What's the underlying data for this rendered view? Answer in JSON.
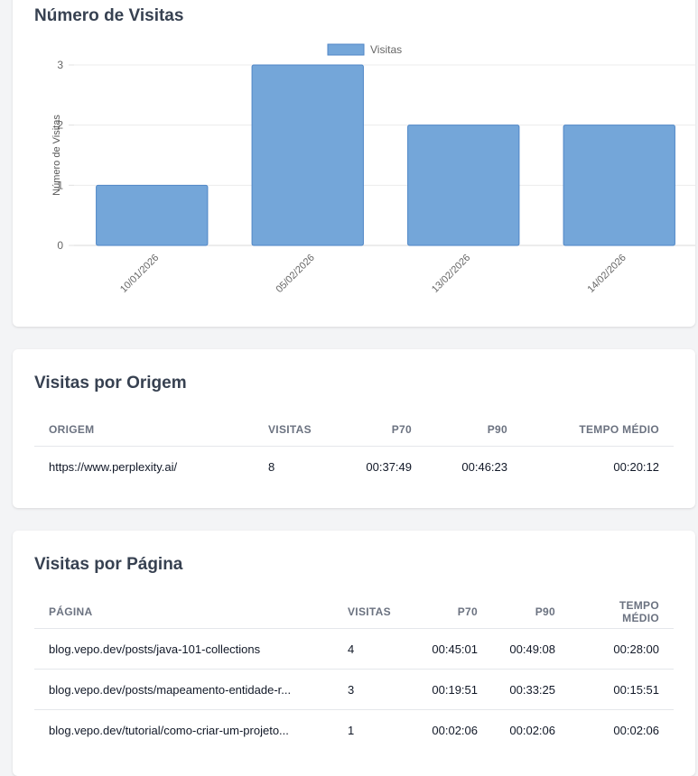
{
  "chart_section": {
    "title": "Número de Visitas"
  },
  "chart_data": {
    "type": "bar",
    "categories": [
      "10/01/2026",
      "05/02/2026",
      "13/02/2026",
      "14/02/2026"
    ],
    "series": [
      {
        "name": "Visitas",
        "values": [
          1,
          3,
          2,
          2
        ],
        "color": "#74a6d9"
      }
    ],
    "ylabel": "Número de Visitas",
    "yticks": [
      0,
      1,
      2,
      3
    ],
    "ylim": [
      0,
      3
    ],
    "legend": "top-center",
    "grid": true
  },
  "origem_section": {
    "title": "Visitas por Origem",
    "columns": [
      "Origem",
      "Visitas",
      "P70",
      "P90",
      "Tempo Médio"
    ],
    "rows": [
      {
        "origem": "https://www.perplexity.ai/",
        "visitas": "8",
        "p70": "00:37:49",
        "p90": "00:46:23",
        "tempo": "00:20:12"
      }
    ]
  },
  "pagina_section": {
    "title": "Visitas por Página",
    "columns": [
      "Página",
      "Visitas",
      "P70",
      "P90",
      "Tempo Médio"
    ],
    "rows": [
      {
        "pagina": "blog.vepo.dev/posts/java-101-collections",
        "visitas": "4",
        "p70": "00:45:01",
        "p90": "00:49:08",
        "tempo": "00:28:00"
      },
      {
        "pagina": "blog.vepo.dev/posts/mapeamento-entidade-r...",
        "visitas": "3",
        "p70": "00:19:51",
        "p90": "00:33:25",
        "tempo": "00:15:51"
      },
      {
        "pagina": "blog.vepo.dev/tutorial/como-criar-um-projeto...",
        "visitas": "1",
        "p70": "00:02:06",
        "p90": "00:02:06",
        "tempo": "00:02:06"
      }
    ]
  }
}
